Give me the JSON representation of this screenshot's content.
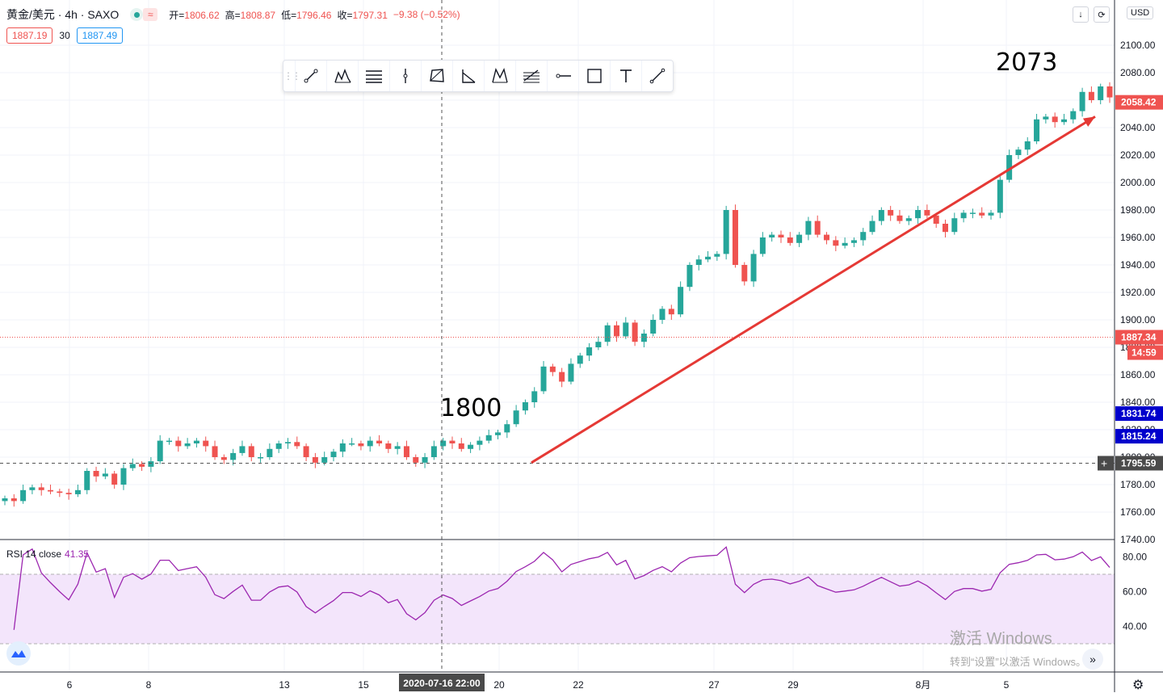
{
  "header": {
    "symbol": "黄金/美元 · 4h · SAXO",
    "open_label": "开=",
    "open": "1806.62",
    "high_label": "高=",
    "high": "1808.87",
    "low_label": "低=",
    "low": "1796.46",
    "close_label": "收=",
    "close": "1797.31",
    "change": "−9.38 (−0.52%)",
    "bid": "1887.19",
    "spread": "30",
    "ask": "1887.49",
    "currency": "USD",
    "wave_glyph": "≈",
    "colors": {
      "up": "#26a69a",
      "down": "#ef5350",
      "ask": "#2196f3"
    }
  },
  "toolbar": {
    "tools": [
      "trend-line-icon",
      "pattern-icon",
      "channel-icon",
      "vertical-line-icon",
      "polygon-icon",
      "angle-icon",
      "xabcd-icon",
      "fib-icon",
      "horizontal-ray-icon",
      "rectangle-icon",
      "text-icon",
      "line-icon"
    ]
  },
  "top_buttons": {
    "down": "↓",
    "refresh": "⟳"
  },
  "annotations": {
    "label_1800": "1800",
    "label_2073": "2073"
  },
  "rsi": {
    "label": "RSI 14 close",
    "value": "41.35"
  },
  "watermark": {
    "line1": "激活 Windows",
    "line2": "转到“设置”以激活 Windows。"
  },
  "nav": {
    "scroll_glyph": "»",
    "gear_glyph": "⚙"
  },
  "chart_data": {
    "type": "candlestick",
    "price_axis": {
      "ticks": [
        2100,
        2080,
        2060,
        2040,
        2020,
        2000,
        1980,
        1960,
        1940,
        1920,
        1900,
        1880,
        1860,
        1840,
        1820,
        1800,
        1780,
        1760,
        1740
      ],
      "visible_range": [
        1740,
        2110
      ]
    },
    "price_labels": [
      {
        "value": 2058.42,
        "text": "2058.42",
        "color": "#ef5350"
      },
      {
        "value": 1887.34,
        "text": "1887.34",
        "color": "#ef5350"
      },
      {
        "value": 1831.74,
        "text": "1831.74",
        "color": "#0000cc"
      },
      {
        "value": 1815.24,
        "text": "1815.24",
        "color": "#0000cc"
      },
      {
        "value": 1795.59,
        "text": "1795.59",
        "color": "#4a4a4a"
      }
    ],
    "countdown": "14:59",
    "current_line": 1887.34,
    "crosshair": {
      "price": 1795.59,
      "time": "2020-07-16  22:00"
    },
    "time_axis": [
      "6",
      "8",
      "13",
      "15",
      "20",
      "22",
      "27",
      "29",
      "8月",
      "5"
    ],
    "trend_arrow": {
      "from": 1796,
      "to": 2048
    },
    "close_path": [
      1770,
      1768,
      1776,
      1778,
      1776,
      1775,
      1774,
      1773,
      1776,
      1790,
      1786,
      1788,
      1780,
      1792,
      1795,
      1793,
      1797,
      1812,
      1812,
      1808,
      1810,
      1812,
      1808,
      1800,
      1798,
      1803,
      1808,
      1800,
      1800,
      1806,
      1810,
      1811,
      1808,
      1800,
      1796,
      1800,
      1804,
      1810,
      1810,
      1808,
      1812,
      1810,
      1806,
      1808,
      1800,
      1796,
      1800,
      1808,
      1812,
      1810,
      1806,
      1809,
      1812,
      1816,
      1818,
      1824,
      1834,
      1840,
      1848,
      1866,
      1862,
      1855,
      1868,
      1874,
      1880,
      1884,
      1896,
      1888,
      1898,
      1884,
      1890,
      1900,
      1908,
      1904,
      1924,
      1940,
      1944,
      1946,
      1948,
      1980,
      1940,
      1928,
      1948,
      1960,
      1962,
      1960,
      1956,
      1962,
      1972,
      1962,
      1958,
      1954,
      1956,
      1958,
      1964,
      1972,
      1980,
      1976,
      1972,
      1974,
      1980,
      1976,
      1970,
      1964,
      1974,
      1978,
      1978,
      1976,
      1978,
      2002,
      2020,
      2024,
      2030,
      2046,
      2048,
      2044,
      2046,
      2052,
      2066,
      2060,
      2070,
      2062
    ]
  }
}
